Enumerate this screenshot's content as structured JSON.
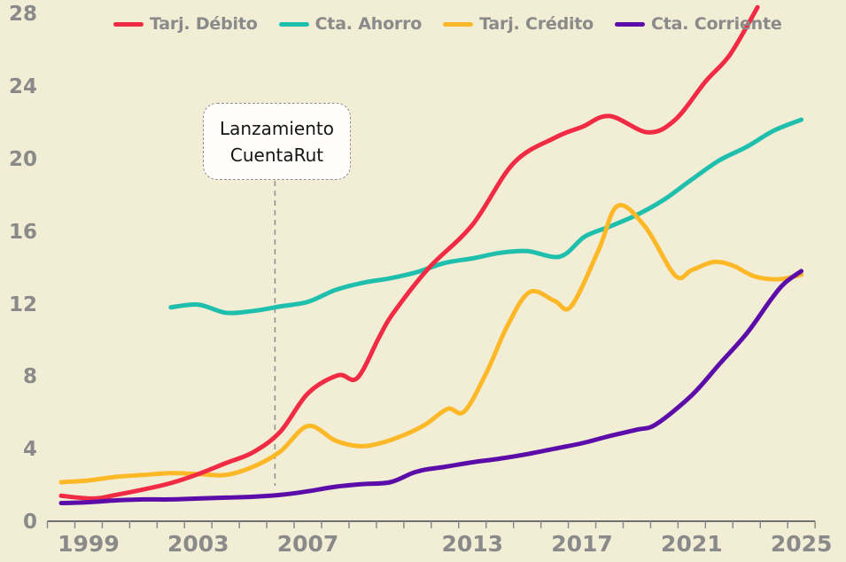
{
  "chart_data": {
    "type": "line",
    "title": "",
    "grid": false,
    "legend_position": "top",
    "x_axis": {
      "labels": [
        "1999",
        "2003",
        "2007",
        "2013",
        "2017",
        "2021",
        "2025"
      ],
      "label_years": [
        1999,
        2003,
        2007,
        2013,
        2017,
        2021,
        2025
      ],
      "year_range": [
        1998,
        2025
      ],
      "minor_ticks_every_years": 1
    },
    "y_axis": {
      "tick_values": [
        0,
        4,
        8,
        12,
        16,
        20,
        24,
        28
      ],
      "range": [
        0,
        28
      ]
    },
    "series": [
      {
        "id": "cta-ahorro",
        "name": "Cta. Ahorro",
        "color": "#1fbfad",
        "points": [
          [
            2002,
            11.85
          ],
          [
            2003,
            12.0
          ],
          [
            2004,
            11.55
          ],
          [
            2005,
            11.65
          ],
          [
            2006,
            11.9
          ],
          [
            2007,
            12.15
          ],
          [
            2008,
            12.8
          ],
          [
            2009,
            13.2
          ],
          [
            2010,
            13.45
          ],
          [
            2011,
            13.8
          ],
          [
            2012,
            14.3
          ],
          [
            2013,
            14.55
          ],
          [
            2014,
            14.85
          ],
          [
            2015,
            14.95
          ],
          [
            2016.2,
            14.65
          ],
          [
            2017.1,
            15.75
          ],
          [
            2018,
            16.3
          ],
          [
            2019,
            16.95
          ],
          [
            2020,
            17.8
          ],
          [
            2021,
            18.9
          ],
          [
            2022,
            19.95
          ],
          [
            2023,
            20.7
          ],
          [
            2024,
            21.6
          ],
          [
            2025,
            22.2
          ]
        ]
      },
      {
        "id": "tarj-credito",
        "name": "Tarj. Crédito",
        "color": "#fdb827",
        "points": [
          [
            1998,
            2.2
          ],
          [
            1999,
            2.3
          ],
          [
            2000,
            2.5
          ],
          [
            2001,
            2.6
          ],
          [
            2002,
            2.7
          ],
          [
            2003,
            2.65
          ],
          [
            2004,
            2.6
          ],
          [
            2005,
            3.05
          ],
          [
            2006,
            3.9
          ],
          [
            2007,
            5.3
          ],
          [
            2008,
            4.5
          ],
          [
            2008.8,
            4.2
          ],
          [
            2009.5,
            4.3
          ],
          [
            2010.5,
            4.8
          ],
          [
            2011.3,
            5.4
          ],
          [
            2012.1,
            6.25
          ],
          [
            2012.7,
            6.1
          ],
          [
            2013.5,
            8.2
          ],
          [
            2014.3,
            10.9
          ],
          [
            2015.1,
            12.7
          ],
          [
            2016,
            12.2
          ],
          [
            2016.6,
            11.9
          ],
          [
            2017.6,
            15.0
          ],
          [
            2018.3,
            17.45
          ],
          [
            2019.3,
            16.3
          ],
          [
            2020.4,
            13.6
          ],
          [
            2021,
            13.9
          ],
          [
            2021.8,
            14.35
          ],
          [
            2022.5,
            14.15
          ],
          [
            2023.3,
            13.55
          ],
          [
            2024.2,
            13.4
          ],
          [
            2025,
            13.65
          ]
        ]
      },
      {
        "id": "tarj-debito",
        "name": "Tarj. Débito",
        "color": "#f22b45",
        "points": [
          [
            1998,
            1.45
          ],
          [
            1999.2,
            1.3
          ],
          [
            2000,
            1.5
          ],
          [
            2001,
            1.8
          ],
          [
            2002,
            2.15
          ],
          [
            2003,
            2.65
          ],
          [
            2004,
            3.25
          ],
          [
            2005,
            3.85
          ],
          [
            2006,
            5.0
          ],
          [
            2007,
            7.1
          ],
          [
            2008.1,
            8.1
          ],
          [
            2008.8,
            7.95
          ],
          [
            2009.6,
            10.2
          ],
          [
            2010.1,
            11.5
          ],
          [
            2011.4,
            14.0
          ],
          [
            2013,
            16.4
          ],
          [
            2014.5,
            19.8
          ],
          [
            2016,
            21.2
          ],
          [
            2017,
            21.8
          ],
          [
            2018,
            22.4
          ],
          [
            2019.4,
            21.5
          ],
          [
            2020.4,
            22.2
          ],
          [
            2021.5,
            24.3
          ],
          [
            2022.4,
            25.8
          ],
          [
            2023.4,
            28.4
          ]
        ]
      },
      {
        "id": "cta-corriente",
        "name": "Cta. Corriente",
        "color": "#5c0ca8",
        "points": [
          [
            1998,
            1.05
          ],
          [
            1999,
            1.1
          ],
          [
            2000,
            1.2
          ],
          [
            2001,
            1.25
          ],
          [
            2002,
            1.25
          ],
          [
            2003,
            1.3
          ],
          [
            2004,
            1.35
          ],
          [
            2005,
            1.4
          ],
          [
            2006,
            1.5
          ],
          [
            2007,
            1.7
          ],
          [
            2008,
            1.95
          ],
          [
            2009,
            2.1
          ],
          [
            2010,
            2.2
          ],
          [
            2010.8,
            2.7
          ],
          [
            2011.3,
            2.9
          ],
          [
            2012,
            3.05
          ],
          [
            2013,
            3.3
          ],
          [
            2014,
            3.5
          ],
          [
            2015,
            3.75
          ],
          [
            2016,
            4.05
          ],
          [
            2017,
            4.35
          ],
          [
            2018,
            4.75
          ],
          [
            2019,
            5.1
          ],
          [
            2019.7,
            5.4
          ],
          [
            2021,
            7.0
          ],
          [
            2022,
            8.7
          ],
          [
            2023,
            10.4
          ],
          [
            2023.9,
            12.3
          ],
          [
            2024.4,
            13.2
          ],
          [
            2025,
            13.85
          ]
        ]
      }
    ],
    "legend_order": [
      "tarj-debito",
      "cta-ahorro",
      "tarj-credito",
      "cta-corriente"
    ],
    "annotation": {
      "text_lines": [
        "Lanzamiento",
        "CuentaRut"
      ],
      "marker_year": 2005.8,
      "connector": "dashed-vertical"
    }
  },
  "colors": {
    "background": "#f2edd5",
    "axis_line": "#707070",
    "tick_mark": "#8a8a8a",
    "tick_label": "#8a8a8a",
    "legend_text": "#8a8a8a",
    "annotation_border": "#8f8f8f",
    "annotation_bg": "#fffefb",
    "annotation_text": "#151515"
  }
}
